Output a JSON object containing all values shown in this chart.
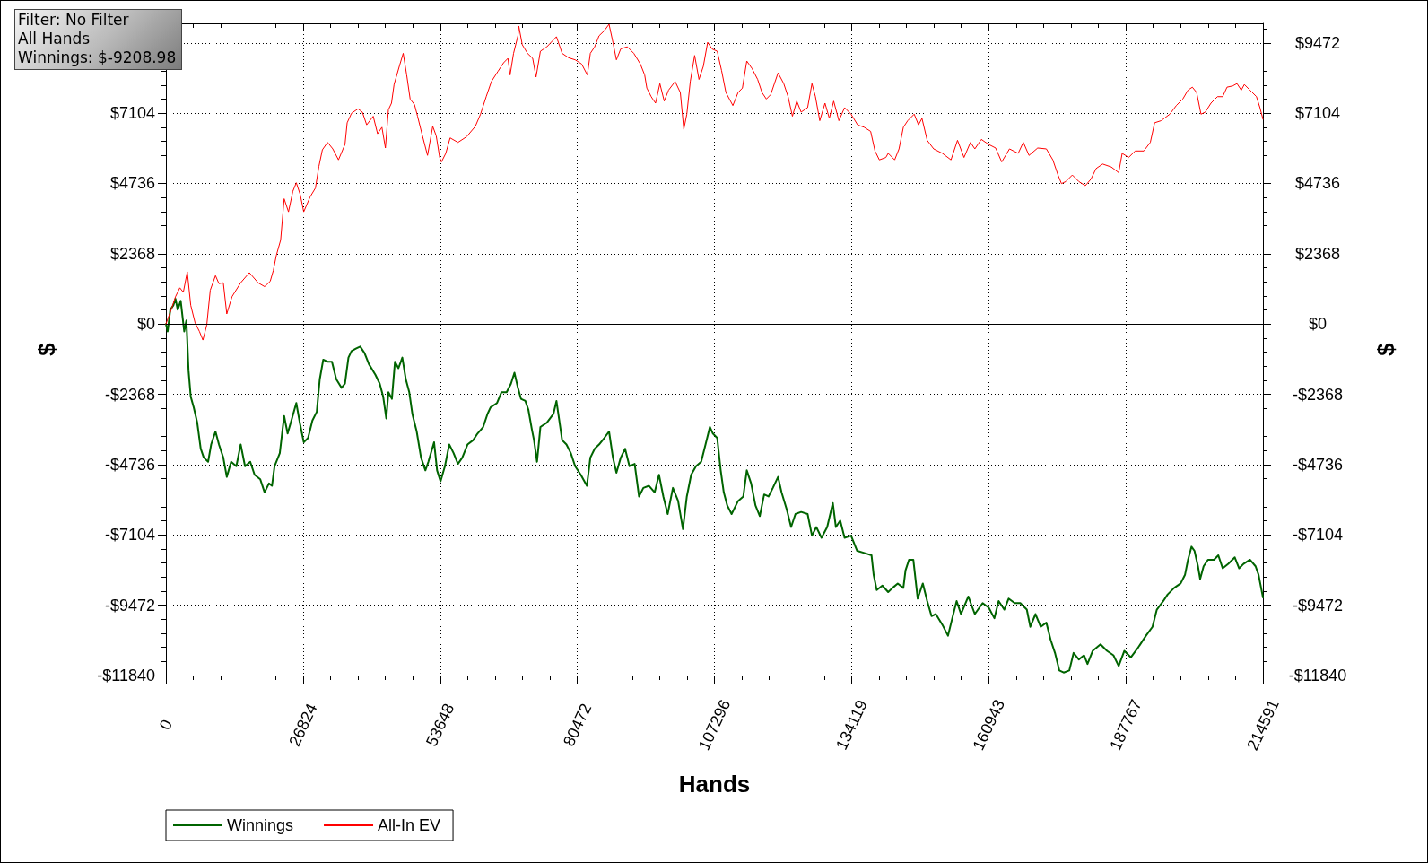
{
  "chart_data": {
    "type": "line",
    "xlabel": "Hands",
    "ylabel": "$",
    "y2label": "$",
    "annotations": [
      "Filter: No Filter",
      "All Hands",
      "Winnings: $-9208.98"
    ],
    "xlim": [
      0,
      214591
    ],
    "xticks": [
      0,
      26824,
      53648,
      80472,
      107296,
      134119,
      160943,
      187767,
      214591
    ],
    "ylim": [
      -11840,
      10130
    ],
    "yticks": [
      {
        "value": -11840,
        "label": "-$11840"
      },
      {
        "value": -9472,
        "label": "-$9472"
      },
      {
        "value": -7104,
        "label": "-$7104"
      },
      {
        "value": -4736,
        "label": "-$4736"
      },
      {
        "value": -2368,
        "label": "-$2368"
      },
      {
        "value": 0,
        "label": "$0"
      },
      {
        "value": 2368,
        "label": "$2368"
      },
      {
        "value": 4736,
        "label": "$4736"
      },
      {
        "value": 7104,
        "label": "$7104"
      },
      {
        "value": 9472,
        "label": null
      }
    ],
    "y2lim": [
      -11840,
      10130
    ],
    "y2ticks": [
      {
        "value": -11840,
        "label": "-$11840"
      },
      {
        "value": -9472,
        "label": "-$9472"
      },
      {
        "value": -7104,
        "label": "-$7104"
      },
      {
        "value": -4736,
        "label": "-$4736"
      },
      {
        "value": -2368,
        "label": "-$2368"
      },
      {
        "value": 0,
        "label": "$0"
      },
      {
        "value": 2368,
        "label": "$2368"
      },
      {
        "value": 4736,
        "label": "$4736"
      },
      {
        "value": 7104,
        "label": "$7104"
      },
      {
        "value": 9472,
        "label": "$9472"
      }
    ],
    "grid": true,
    "legend": "bottom left",
    "marker": "none",
    "line_style": "solid",
    "ref_lines": [
      {
        "axis": "y",
        "value": 0,
        "color": "#000000"
      }
    ],
    "series": [
      {
        "name": "Winnings",
        "color": "#006400",
        "x": [
          0,
          340,
          850,
          1450,
          1870,
          2300,
          2890,
          3570,
          4000,
          4420,
          4850,
          5440,
          6120,
          6800,
          7400,
          8250,
          8840,
          9690,
          10370,
          11220,
          11900,
          12750,
          13770,
          14620,
          15470,
          16490,
          17340,
          18450,
          19300,
          20150,
          20740,
          21250,
          22270,
          23120,
          23800,
          24650,
          25500,
          26180,
          26950,
          27800,
          28650,
          29500,
          30090,
          30770,
          31620,
          32470,
          33320,
          34340,
          35020,
          35700,
          36300,
          37150,
          38000,
          38850,
          39700,
          40970,
          41820,
          42500,
          43100,
          43520,
          44200,
          44800,
          45480,
          46240,
          46920,
          47600,
          48200,
          49050,
          49900,
          50750,
          51340,
          52450,
          53040,
          53720,
          54570,
          55420,
          56270,
          57120,
          57970,
          58990,
          60100,
          60950,
          62050,
          62900,
          63500,
          64770,
          65620,
          66640,
          67490,
          68170,
          68850,
          69450,
          70300,
          70890,
          71570,
          72000,
          72590,
          73250,
          74520,
          75800,
          76390,
          77500,
          78350,
          79200,
          80050,
          81150,
          82340,
          83020,
          83870,
          84720,
          85740,
          86680,
          87440,
          88120,
          88970,
          89820,
          90670,
          91690,
          92540,
          93390,
          94500,
          95600,
          96450,
          97300,
          98150,
          99170,
          100190,
          101130,
          101890,
          102740,
          103680,
          104700,
          105550,
          106400,
          106990,
          107840,
          108520,
          109120,
          109800,
          110650,
          111920,
          112940,
          113620,
          114470,
          115320,
          116170,
          117020,
          117870,
          118720,
          119740,
          120420,
          121440,
          122290,
          123140,
          124250,
          125520,
          126370,
          127220,
          128240,
          129350,
          130450,
          131050,
          131900,
          132750,
          134020,
          135210,
          136740,
          138020,
          138440,
          139040,
          140140,
          141280,
          142130,
          143150,
          144250,
          144670,
          145350,
          146200,
          147050,
          148060,
          148910,
          149760,
          150600,
          151880,
          152980,
          153820,
          154670,
          155520,
          156960,
          158230,
          159760,
          160940,
          162050,
          162890,
          163990,
          164840,
          166030,
          167130,
          168400,
          169080,
          170100,
          171110,
          172220,
          173060,
          173910,
          174760,
          175610,
          176710,
          177550,
          178570,
          179590,
          180270,
          181280,
          182810,
          184080,
          185350,
          186370,
          187470,
          188740,
          190010,
          191710,
          192980,
          193830,
          195100,
          195950,
          197220,
          198490,
          199340,
          199930,
          200610,
          201200,
          201880,
          202300,
          202980,
          203830,
          205010,
          205860,
          206710,
          207810,
          209080,
          209930,
          210780,
          212050,
          213150,
          213740,
          214591
        ],
        "values": [
          0,
          -250,
          480,
          630,
          850,
          480,
          780,
          -250,
          120,
          -1570,
          -2450,
          -2810,
          -3320,
          -4200,
          -4500,
          -4640,
          -4060,
          -3620,
          -4060,
          -4500,
          -5150,
          -4640,
          -4790,
          -4060,
          -4790,
          -4640,
          -5080,
          -5230,
          -5670,
          -5370,
          -5450,
          -4790,
          -4350,
          -3100,
          -3690,
          -3180,
          -2660,
          -3320,
          -3980,
          -3840,
          -3250,
          -2960,
          -1860,
          -1200,
          -1270,
          -1270,
          -1860,
          -2150,
          -2010,
          -1130,
          -910,
          -830,
          -760,
          -980,
          -1350,
          -1710,
          -2010,
          -2450,
          -3180,
          -2300,
          -2520,
          -1270,
          -1490,
          -1130,
          -1860,
          -2300,
          -3030,
          -3620,
          -4500,
          -4930,
          -4640,
          -3980,
          -4930,
          -5300,
          -4790,
          -4060,
          -4350,
          -4710,
          -4500,
          -4060,
          -3910,
          -3690,
          -3470,
          -3030,
          -2810,
          -2660,
          -2300,
          -2300,
          -2010,
          -1640,
          -2150,
          -2520,
          -2590,
          -2880,
          -3540,
          -3910,
          -4640,
          -3470,
          -3320,
          -3030,
          -2590,
          -3910,
          -4060,
          -4350,
          -4790,
          -5080,
          -5450,
          -4500,
          -4200,
          -4060,
          -3840,
          -3620,
          -4500,
          -5010,
          -4500,
          -4200,
          -4790,
          -4710,
          -5810,
          -5520,
          -5450,
          -5670,
          -5080,
          -5810,
          -6400,
          -5520,
          -5960,
          -6910,
          -5810,
          -5080,
          -4790,
          -4640,
          -4060,
          -3470,
          -3690,
          -3840,
          -4930,
          -5670,
          -6110,
          -6400,
          -5960,
          -5810,
          -4930,
          -5370,
          -6110,
          -6470,
          -5740,
          -5810,
          -5520,
          -5150,
          -5670,
          -6250,
          -6840,
          -6400,
          -6330,
          -6400,
          -7130,
          -6840,
          -7200,
          -6840,
          -6030,
          -6840,
          -6620,
          -7200,
          -7130,
          -7640,
          -7720,
          -7790,
          -8450,
          -8960,
          -8810,
          -9030,
          -8890,
          -8740,
          -8890,
          -8300,
          -7940,
          -7940,
          -9250,
          -8740,
          -9330,
          -9840,
          -9770,
          -10130,
          -10500,
          -9910,
          -9330,
          -9770,
          -9180,
          -9770,
          -9400,
          -9550,
          -9910,
          -9330,
          -9620,
          -9250,
          -9400,
          -9400,
          -9620,
          -10200,
          -9770,
          -10200,
          -10060,
          -10640,
          -11080,
          -11670,
          -11740,
          -11670,
          -11080,
          -11300,
          -11160,
          -11450,
          -11010,
          -10790,
          -11010,
          -11160,
          -11520,
          -11010,
          -11230,
          -10940,
          -10500,
          -10200,
          -9620,
          -9330,
          -9110,
          -8890,
          -8740,
          -8450,
          -7940,
          -7500,
          -7640,
          -8160,
          -8590,
          -8160,
          -7940,
          -7940,
          -7790,
          -8230,
          -8080,
          -7860,
          -8230,
          -8080,
          -7940,
          -8160,
          -8450,
          -9210
        ]
      },
      {
        "name": "All-In EV",
        "color": "#ff0000",
        "x": [
          0,
          1020,
          1870,
          2720,
          3400,
          4170,
          4850,
          5700,
          6550,
          7230,
          7990,
          8670,
          9690,
          10370,
          11220,
          11900,
          12920,
          14620,
          16320,
          18020,
          19300,
          20400,
          21000,
          21590,
          22440,
          23120,
          23970,
          24820,
          25500,
          26270,
          26950,
          28220,
          29240,
          29920,
          30600,
          31620,
          32640,
          33750,
          35020,
          35450,
          36300,
          37570,
          38420,
          39270,
          40550,
          41400,
          42250,
          42930,
          43520,
          44120,
          44630,
          45650,
          46410,
          47090,
          47770,
          48620,
          49220,
          50070,
          51170,
          52190,
          52870,
          53550,
          53890,
          54740,
          55590,
          57120,
          58820,
          60520,
          61540,
          62650,
          63670,
          64940,
          66050,
          66900,
          67320,
          68000,
          68850,
          69020,
          69700,
          70720,
          71740,
          72400,
          73250,
          74520,
          76390,
          77500,
          78770,
          80050,
          81320,
          82430,
          83020,
          83870,
          84720,
          85740,
          86680,
          87440,
          88120,
          88970,
          90250,
          91520,
          92800,
          93650,
          94070,
          94920,
          95770,
          96620,
          97470,
          98320,
          99600,
          100620,
          101300,
          101890,
          102570,
          103420,
          104270,
          105120,
          105970,
          106820,
          107840,
          108690,
          109540,
          110900,
          111920,
          112770,
          113620,
          114640,
          115750,
          116600,
          117450,
          118300,
          119740,
          120850,
          121700,
          122550,
          123400,
          124250,
          125520,
          126370,
          127050,
          127900,
          128920,
          129770,
          130620,
          131640,
          132750,
          134020,
          135300,
          136570,
          137850,
          138700,
          139550,
          140820,
          141280,
          142550,
          143400,
          144250,
          145100,
          146370,
          147210,
          147890,
          148910,
          150180,
          151880,
          153570,
          154840,
          156110,
          157380,
          158230,
          159500,
          160940,
          162300,
          163490,
          165010,
          166710,
          167720,
          168830,
          170520,
          172220,
          173490,
          174500,
          175180,
          176030,
          177300,
          178570,
          179840,
          180940,
          181960,
          183230,
          184930,
          186370,
          187050,
          188320,
          189590,
          191280,
          192560,
          193400,
          194670,
          196370,
          197640,
          198910,
          199930,
          200780,
          201620,
          202470,
          203320,
          204420,
          205690,
          206710,
          207560,
          208660,
          209510,
          210350,
          210950,
          212050,
          213320,
          214000,
          214591
        ],
        "values": [
          0,
          480,
          920,
          1220,
          1070,
          1760,
          630,
          40,
          -250,
          -540,
          -30,
          1140,
          1630,
          1360,
          1390,
          340,
          920,
          1390,
          1730,
          1390,
          1260,
          1440,
          1800,
          2310,
          2830,
          4220,
          3780,
          4470,
          4760,
          4360,
          3780,
          4290,
          4580,
          5310,
          5870,
          6120,
          5900,
          5530,
          6050,
          6780,
          7100,
          7250,
          7140,
          6710,
          7000,
          6410,
          6630,
          5930,
          7220,
          7440,
          8070,
          8680,
          9120,
          8390,
          7580,
          7390,
          7000,
          6410,
          5680,
          6660,
          6340,
          5610,
          5460,
          5750,
          6270,
          6120,
          6310,
          6660,
          7070,
          7660,
          8170,
          8510,
          8800,
          8950,
          8390,
          9120,
          9710,
          10040,
          9410,
          9120,
          8950,
          8320,
          9190,
          9340,
          9680,
          9120,
          8970,
          8900,
          8760,
          8390,
          9120,
          9340,
          9710,
          9880,
          10100,
          9490,
          8900,
          9270,
          9340,
          9120,
          8760,
          8390,
          7950,
          7660,
          7440,
          8100,
          7510,
          7880,
          8170,
          7800,
          6560,
          7070,
          8170,
          9050,
          8240,
          8680,
          9490,
          9270,
          9190,
          8540,
          7800,
          7360,
          7800,
          7950,
          8860,
          8610,
          8240,
          7800,
          7580,
          7730,
          8460,
          8100,
          7660,
          7000,
          7510,
          7140,
          7290,
          8100,
          7660,
          6850,
          7440,
          6930,
          7510,
          6850,
          7290,
          7070,
          6710,
          6630,
          6490,
          5830,
          5530,
          5610,
          5750,
          5530,
          5900,
          6630,
          6850,
          7070,
          6710,
          6930,
          6190,
          5900,
          5750,
          5530,
          6190,
          5610,
          6120,
          5900,
          6220,
          6050,
          5930,
          5460,
          5900,
          5750,
          6120,
          5680,
          5930,
          5900,
          5530,
          5020,
          4730,
          4800,
          5020,
          4800,
          4660,
          4880,
          5240,
          5390,
          5290,
          5100,
          5750,
          5610,
          5830,
          5830,
          6120,
          6780,
          6850,
          7070,
          7360,
          7580,
          7880,
          7980,
          7800,
          7070,
          7140,
          7440,
          7660,
          7660,
          7980,
          8020,
          8100,
          7880,
          8070,
          7880,
          7660,
          7290,
          6900
        ]
      }
    ]
  }
}
